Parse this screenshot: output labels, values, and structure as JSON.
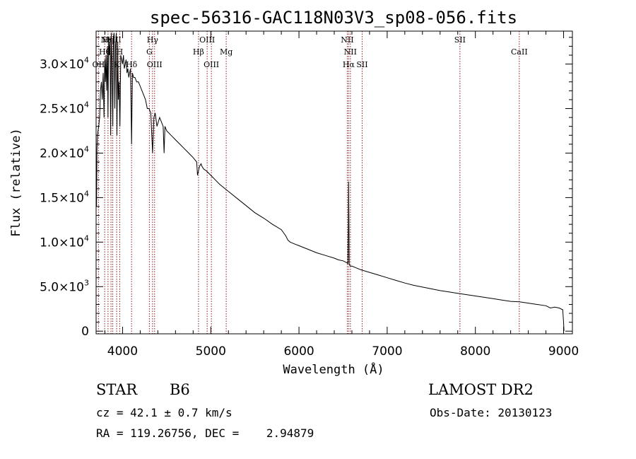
{
  "chart_data": {
    "type": "line",
    "title": "spec-56316-GAC118N03V3_sp08-056.fits",
    "xlabel": "Wavelength (Å)",
    "ylabel": "Flux (relative)",
    "xlim": [
      3700,
      9100
    ],
    "ylim": [
      -300,
      33700
    ],
    "x_ticks": [
      {
        "value": 4000,
        "label": "4000"
      },
      {
        "value": 5000,
        "label": "5000"
      },
      {
        "value": 6000,
        "label": "6000"
      },
      {
        "value": 7000,
        "label": "7000"
      },
      {
        "value": 8000,
        "label": "8000"
      },
      {
        "value": 9000,
        "label": "9000"
      }
    ],
    "y_ticks": [
      {
        "value": 0,
        "mant": "0",
        "exp": ""
      },
      {
        "value": 5000,
        "mant": "5.0×10",
        "exp": "3"
      },
      {
        "value": 10000,
        "mant": "1.0×10",
        "exp": "4"
      },
      {
        "value": 15000,
        "mant": "1.5×10",
        "exp": "4"
      },
      {
        "value": 20000,
        "mant": "2.0×10",
        "exp": "4"
      },
      {
        "value": 25000,
        "mant": "2.5×10",
        "exp": "4"
      },
      {
        "value": 30000,
        "mant": "3.0×10",
        "exp": "4"
      }
    ],
    "spectrum_color": "#000000",
    "line_color": "#8b1a1a",
    "series": [
      {
        "x": [
          3705,
          3710,
          3716,
          3722,
          3730,
          3740,
          3750,
          3760,
          3770,
          3780,
          3790,
          3798,
          3805,
          3812,
          3820,
          3828,
          3835,
          3842,
          3850,
          3858,
          3865,
          3872,
          3880,
          3889,
          3896,
          3904,
          3912,
          3920,
          3928,
          3936,
          3945,
          3952,
          3960,
          3970,
          3980,
          3990,
          4000,
          4010,
          4020,
          4030,
          4040,
          4050,
          4060,
          4070,
          4080,
          4090,
          4102,
          4112,
          4125,
          4140,
          4160,
          4180,
          4200,
          4220,
          4240,
          4260,
          4280,
          4300,
          4320,
          4340,
          4355,
          4370,
          4390,
          4420,
          4440,
          4460,
          4471,
          4480,
          4500,
          4550,
          4600,
          4650,
          4700,
          4750,
          4800,
          4840,
          4850,
          4861,
          4872,
          4890,
          4900,
          4920,
          4950,
          5000,
          5050,
          5100,
          5200,
          5300,
          5400,
          5500,
          5600,
          5700,
          5800,
          5850,
          5876,
          5900,
          5950,
          6000,
          6100,
          6200,
          6300,
          6400,
          6450,
          6500,
          6540,
          6555,
          6560,
          6563,
          6566,
          6570,
          6575,
          6585,
          6600,
          6650,
          6700,
          6800,
          6900,
          7000,
          7100,
          7200,
          7300,
          7400,
          7500,
          7600,
          7700,
          7800,
          7900,
          8000,
          8100,
          8200,
          8300,
          8400,
          8500,
          8600,
          8700,
          8800,
          8850,
          8900,
          8950,
          8990,
          9000,
          9005
        ],
        "y": [
          14000,
          20500,
          22000,
          22500,
          23000,
          24000,
          27000,
          28000,
          26000,
          29000,
          24000,
          30500,
          28000,
          31000,
          27000,
          32000,
          24000,
          33000,
          31000,
          32500,
          22000,
          33500,
          30000,
          23000,
          33000,
          33500,
          25000,
          32000,
          33500,
          22000,
          32500,
          26000,
          28000,
          23000,
          31000,
          30500,
          30000,
          31000,
          29500,
          30000,
          30500,
          29000,
          29500,
          28500,
          29000,
          29500,
          21000,
          29000,
          28500,
          28500,
          28000,
          28000,
          27500,
          27000,
          26500,
          26000,
          25000,
          25000,
          24500,
          20000,
          24000,
          24500,
          23000,
          24000,
          23500,
          23000,
          20000,
          23000,
          22500,
          22000,
          21500,
          21000,
          20500,
          20000,
          19500,
          19000,
          17500,
          18000,
          18500,
          18800,
          18500,
          18200,
          18000,
          17500,
          17000,
          16500,
          15700,
          14900,
          14100,
          13300,
          12700,
          12000,
          11400,
          10700,
          10200,
          10000,
          9800,
          9600,
          9200,
          8800,
          8500,
          8200,
          8000,
          7900,
          7700,
          7600,
          12000,
          16800,
          13000,
          7500,
          7400,
          7300,
          7300,
          7100,
          6900,
          6600,
          6300,
          6000,
          5700,
          5400,
          5150,
          4950,
          4750,
          4550,
          4400,
          4250,
          4100,
          3950,
          3800,
          3650,
          3500,
          3350,
          3300,
          3150,
          3000,
          2850,
          2600,
          2700,
          2600,
          2400,
          1000,
          0
        ]
      }
    ],
    "line_markers": [
      {
        "x": 3727,
        "label": "OII",
        "row": 2
      },
      {
        "x": 3797,
        "label": "Hθ",
        "row": 1
      },
      {
        "x": 3835,
        "label": "Hη",
        "row": 0
      },
      {
        "x": 3869,
        "label": "NeIII",
        "row": 0
      },
      {
        "x": 3889,
        "label": "SII",
        "row": 0
      },
      {
        "x": 3933,
        "label": "K",
        "row": 2
      },
      {
        "x": 3968,
        "label": "H",
        "row": 1
      },
      {
        "x": 4102,
        "label": "Hδ",
        "row": 2
      },
      {
        "x": 4304,
        "label": "G",
        "row": 1
      },
      {
        "x": 4340,
        "label": "Hγ",
        "row": 0
      },
      {
        "x": 4363,
        "label": "OIII",
        "row": 2
      },
      {
        "x": 4861,
        "label": "Hβ",
        "row": 1
      },
      {
        "x": 4959,
        "label": "OIII",
        "row": 0
      },
      {
        "x": 5007,
        "label": "OIII",
        "row": 2
      },
      {
        "x": 5175,
        "label": "Mg",
        "row": 1
      },
      {
        "x": 6548,
        "label": "NII",
        "row": 0
      },
      {
        "x": 6563,
        "label": "Hα",
        "row": 2
      },
      {
        "x": 6583,
        "label": "NII",
        "row": 1
      },
      {
        "x": 6716,
        "label": "SII",
        "row": 2
      },
      {
        "x": 7825,
        "label": "SII",
        "row": 0
      },
      {
        "x": 8498,
        "label": "CaII",
        "row": 1
      }
    ]
  },
  "info": {
    "object_class": "STAR",
    "subclass": "B6",
    "survey": "LAMOST DR2",
    "redshift": "cz = 42.1 ± 0.7 km/s",
    "obs_date": "Obs-Date: 20130123",
    "coords": "RA = 119.26756, DEC =    2.94879"
  }
}
